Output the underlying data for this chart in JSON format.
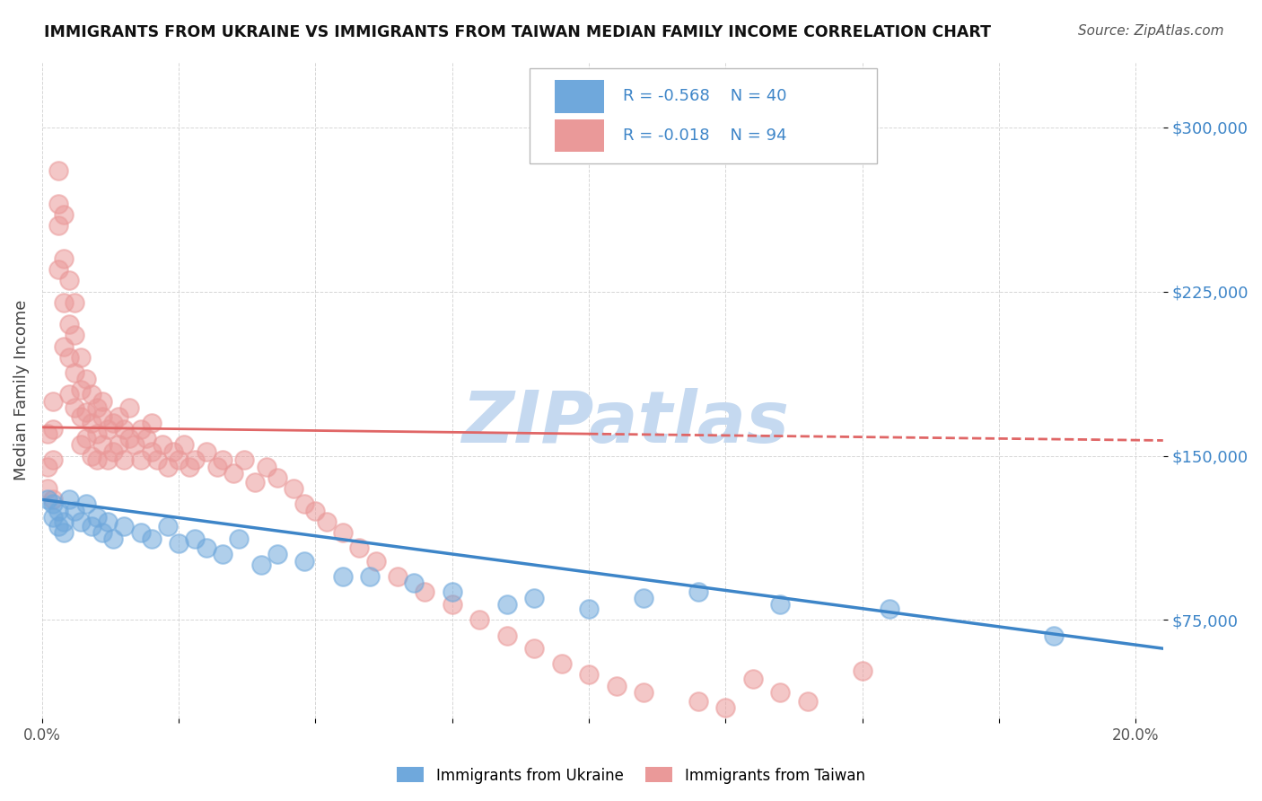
{
  "title": "IMMIGRANTS FROM UKRAINE VS IMMIGRANTS FROM TAIWAN MEDIAN FAMILY INCOME CORRELATION CHART",
  "source": "Source: ZipAtlas.com",
  "ylabel": "Median Family Income",
  "xlim": [
    0.0,
    0.205
  ],
  "ylim": [
    30000,
    330000
  ],
  "yticks": [
    75000,
    150000,
    225000,
    300000
  ],
  "ytick_labels": [
    "$75,000",
    "$150,000",
    "$225,000",
    "$300,000"
  ],
  "xticks": [
    0.0,
    0.025,
    0.05,
    0.075,
    0.1,
    0.125,
    0.15,
    0.175,
    0.2
  ],
  "xtick_labels": [
    "0.0%",
    "",
    "",
    "",
    "",
    "",
    "",
    "",
    "20.0%"
  ],
  "legend_R_ukraine": "-0.568",
  "legend_N_ukraine": "40",
  "legend_R_taiwan": "-0.018",
  "legend_N_taiwan": "94",
  "ukraine_color": "#6fa8dc",
  "taiwan_color": "#ea9999",
  "ukraine_line_color": "#3d85c8",
  "taiwan_line_color": "#e06666",
  "watermark": "ZIPatlas",
  "watermark_color": "#c5d9f0",
  "ukraine_x": [
    0.001,
    0.002,
    0.002,
    0.003,
    0.003,
    0.004,
    0.004,
    0.005,
    0.006,
    0.007,
    0.008,
    0.009,
    0.01,
    0.011,
    0.012,
    0.013,
    0.015,
    0.018,
    0.02,
    0.023,
    0.025,
    0.028,
    0.03,
    0.033,
    0.036,
    0.04,
    0.043,
    0.048,
    0.055,
    0.06,
    0.068,
    0.075,
    0.085,
    0.09,
    0.1,
    0.11,
    0.12,
    0.135,
    0.155,
    0.185
  ],
  "ukraine_y": [
    130000,
    128000,
    122000,
    125000,
    118000,
    120000,
    115000,
    130000,
    125000,
    120000,
    128000,
    118000,
    122000,
    115000,
    120000,
    112000,
    118000,
    115000,
    112000,
    118000,
    110000,
    112000,
    108000,
    105000,
    112000,
    100000,
    105000,
    102000,
    95000,
    95000,
    92000,
    88000,
    82000,
    85000,
    80000,
    85000,
    88000,
    82000,
    80000,
    68000
  ],
  "taiwan_x": [
    0.001,
    0.001,
    0.001,
    0.002,
    0.002,
    0.002,
    0.002,
    0.003,
    0.003,
    0.003,
    0.003,
    0.004,
    0.004,
    0.004,
    0.004,
    0.005,
    0.005,
    0.005,
    0.005,
    0.006,
    0.006,
    0.006,
    0.006,
    0.007,
    0.007,
    0.007,
    0.007,
    0.008,
    0.008,
    0.008,
    0.009,
    0.009,
    0.009,
    0.01,
    0.01,
    0.01,
    0.011,
    0.011,
    0.011,
    0.012,
    0.012,
    0.013,
    0.013,
    0.014,
    0.014,
    0.015,
    0.015,
    0.016,
    0.016,
    0.017,
    0.018,
    0.018,
    0.019,
    0.02,
    0.02,
    0.021,
    0.022,
    0.023,
    0.024,
    0.025,
    0.026,
    0.027,
    0.028,
    0.03,
    0.032,
    0.033,
    0.035,
    0.037,
    0.039,
    0.041,
    0.043,
    0.046,
    0.048,
    0.05,
    0.052,
    0.055,
    0.058,
    0.061,
    0.065,
    0.07,
    0.075,
    0.08,
    0.085,
    0.09,
    0.095,
    0.1,
    0.105,
    0.11,
    0.12,
    0.125,
    0.13,
    0.135,
    0.14,
    0.15
  ],
  "taiwan_y": [
    160000,
    145000,
    135000,
    175000,
    162000,
    148000,
    130000,
    280000,
    265000,
    255000,
    235000,
    260000,
    240000,
    220000,
    200000,
    230000,
    210000,
    195000,
    178000,
    220000,
    205000,
    188000,
    172000,
    195000,
    180000,
    168000,
    155000,
    185000,
    170000,
    158000,
    178000,
    165000,
    150000,
    172000,
    160000,
    148000,
    168000,
    155000,
    175000,
    162000,
    148000,
    165000,
    152000,
    168000,
    155000,
    162000,
    148000,
    158000,
    172000,
    155000,
    148000,
    162000,
    158000,
    152000,
    165000,
    148000,
    155000,
    145000,
    152000,
    148000,
    155000,
    145000,
    148000,
    152000,
    145000,
    148000,
    142000,
    148000,
    138000,
    145000,
    140000,
    135000,
    128000,
    125000,
    120000,
    115000,
    108000,
    102000,
    95000,
    88000,
    82000,
    75000,
    68000,
    62000,
    55000,
    50000,
    45000,
    42000,
    38000,
    35000,
    48000,
    42000,
    38000,
    52000
  ]
}
